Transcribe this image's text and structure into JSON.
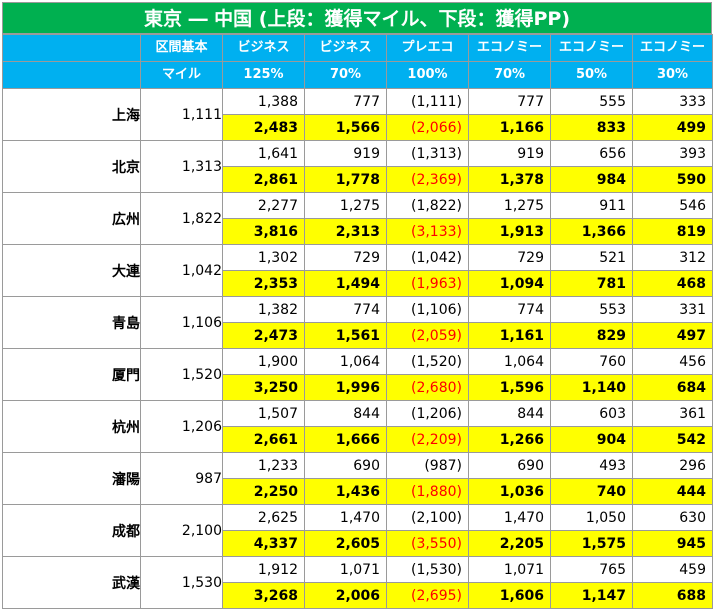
{
  "title": "東京 ― 中国 (上段：獲得マイル、下段：獲得PP)",
  "colors": {
    "title_bg": "#00b050",
    "header_bg": "#00b0f0",
    "pp_bg": "#ffff00",
    "premium_pp_text": "#ff0000"
  },
  "header": {
    "row1": [
      "",
      "区間基本",
      "ビジネス",
      "ビジネス",
      "プレエコ",
      "エコノミー",
      "エコノミー",
      "エコノミー"
    ],
    "row2": [
      "",
      "マイル",
      "125%",
      "70%",
      "100%",
      "70%",
      "50%",
      "30%"
    ]
  },
  "rows": [
    {
      "city": "上海",
      "base": "1,111",
      "miles": [
        "1,388",
        "777",
        "(1,111)",
        "777",
        "555",
        "333"
      ],
      "pp": [
        "2,483",
        "1,566",
        "(2,066)",
        "1,166",
        "833",
        "499"
      ]
    },
    {
      "city": "北京",
      "base": "1,313",
      "miles": [
        "1,641",
        "919",
        "(1,313)",
        "919",
        "656",
        "393"
      ],
      "pp": [
        "2,861",
        "1,778",
        "(2,369)",
        "1,378",
        "984",
        "590"
      ]
    },
    {
      "city": "広州",
      "base": "1,822",
      "miles": [
        "2,277",
        "1,275",
        "(1,822)",
        "1,275",
        "911",
        "546"
      ],
      "pp": [
        "3,816",
        "2,313",
        "(3,133)",
        "1,913",
        "1,366",
        "819"
      ]
    },
    {
      "city": "大連",
      "base": "1,042",
      "miles": [
        "1,302",
        "729",
        "(1,042)",
        "729",
        "521",
        "312"
      ],
      "pp": [
        "2,353",
        "1,494",
        "(1,963)",
        "1,094",
        "781",
        "468"
      ]
    },
    {
      "city": "青島",
      "base": "1,106",
      "miles": [
        "1,382",
        "774",
        "(1,106)",
        "774",
        "553",
        "331"
      ],
      "pp": [
        "2,473",
        "1,561",
        "(2,059)",
        "1,161",
        "829",
        "497"
      ]
    },
    {
      "city": "厦門",
      "base": "1,520",
      "miles": [
        "1,900",
        "1,064",
        "(1,520)",
        "1,064",
        "760",
        "456"
      ],
      "pp": [
        "3,250",
        "1,996",
        "(2,680)",
        "1,596",
        "1,140",
        "684"
      ]
    },
    {
      "city": "杭州",
      "base": "1,206",
      "miles": [
        "1,507",
        "844",
        "(1,206)",
        "844",
        "603",
        "361"
      ],
      "pp": [
        "2,661",
        "1,666",
        "(2,209)",
        "1,266",
        "904",
        "542"
      ]
    },
    {
      "city": "瀋陽",
      "base": "987",
      "miles": [
        "1,233",
        "690",
        "(987)",
        "690",
        "493",
        "296"
      ],
      "pp": [
        "2,250",
        "1,436",
        "(1,880)",
        "1,036",
        "740",
        "444"
      ]
    },
    {
      "city": "成都",
      "base": "2,100",
      "miles": [
        "2,625",
        "1,470",
        "(2,100)",
        "1,470",
        "1,050",
        "630"
      ],
      "pp": [
        "4,337",
        "2,605",
        "(3,550)",
        "2,205",
        "1,575",
        "945"
      ]
    },
    {
      "city": "武漢",
      "base": "1,530",
      "miles": [
        "1,912",
        "1,071",
        "(1,530)",
        "1,071",
        "765",
        "459"
      ],
      "pp": [
        "3,268",
        "2,006",
        "(2,695)",
        "1,606",
        "1,147",
        "688"
      ]
    }
  ]
}
